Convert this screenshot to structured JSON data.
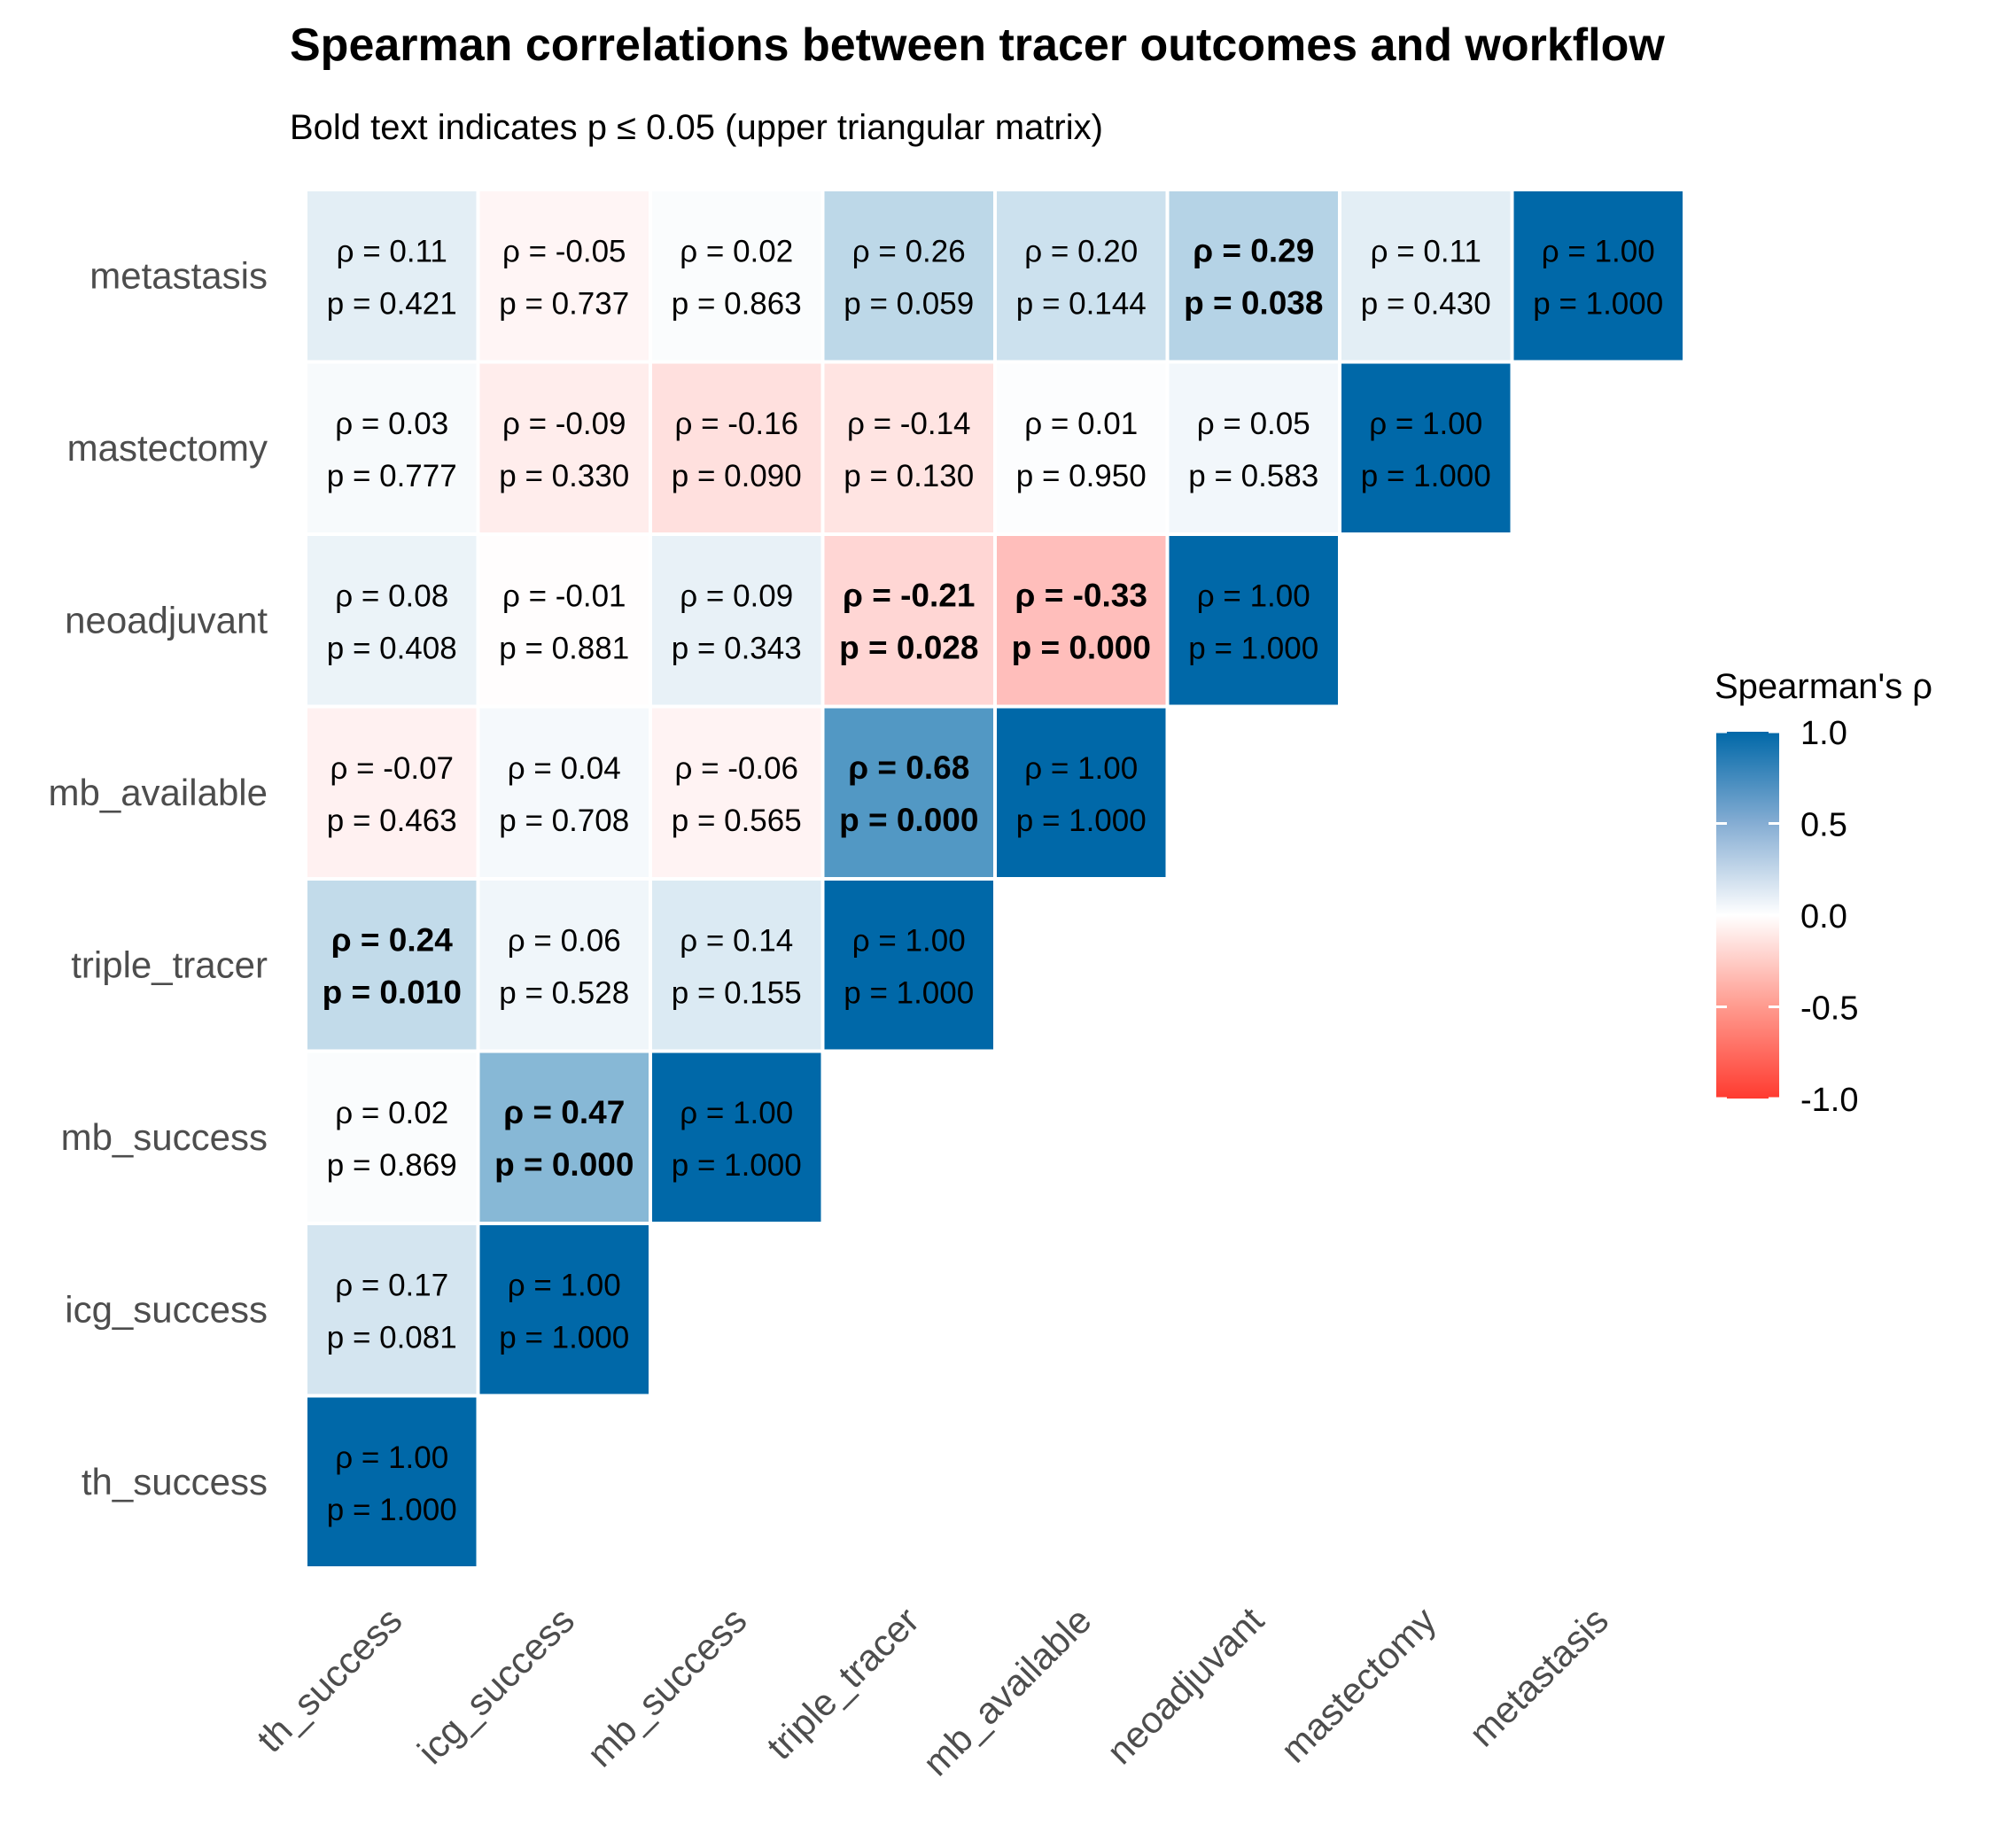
{
  "chart_data": {
    "type": "heatmap",
    "title": "Spearman correlations between tracer outcomes and workflow",
    "subtitle": "Bold text indicates p ≤ 0.05 (upper triangular matrix)",
    "x_categories": [
      "th_success",
      "icg_success",
      "mb_success",
      "triple_tracer",
      "mb_available",
      "neoadjuvant",
      "mastectomy",
      "metastasis"
    ],
    "y_categories": [
      "metastasis",
      "mastectomy",
      "neoadjuvant",
      "mb_available",
      "triple_tracer",
      "mb_success",
      "icg_success",
      "th_success"
    ],
    "cells": [
      {
        "x": "th_success",
        "y": "metastasis",
        "rho": "0.11",
        "p": "0.421",
        "bold": false
      },
      {
        "x": "icg_success",
        "y": "metastasis",
        "rho": "-0.05",
        "p": "0.737",
        "bold": false
      },
      {
        "x": "mb_success",
        "y": "metastasis",
        "rho": "0.02",
        "p": "0.863",
        "bold": false
      },
      {
        "x": "triple_tracer",
        "y": "metastasis",
        "rho": "0.26",
        "p": "0.059",
        "bold": false
      },
      {
        "x": "mb_available",
        "y": "metastasis",
        "rho": "0.20",
        "p": "0.144",
        "bold": false
      },
      {
        "x": "neoadjuvant",
        "y": "metastasis",
        "rho": "0.29",
        "p": "0.038",
        "bold": true
      },
      {
        "x": "mastectomy",
        "y": "metastasis",
        "rho": "0.11",
        "p": "0.430",
        "bold": false
      },
      {
        "x": "metastasis",
        "y": "metastasis",
        "rho": "1.00",
        "p": "1.000",
        "bold": false
      },
      {
        "x": "th_success",
        "y": "mastectomy",
        "rho": "0.03",
        "p": "0.777",
        "bold": false
      },
      {
        "x": "icg_success",
        "y": "mastectomy",
        "rho": "-0.09",
        "p": "0.330",
        "bold": false
      },
      {
        "x": "mb_success",
        "y": "mastectomy",
        "rho": "-0.16",
        "p": "0.090",
        "bold": false
      },
      {
        "x": "triple_tracer",
        "y": "mastectomy",
        "rho": "-0.14",
        "p": "0.130",
        "bold": false
      },
      {
        "x": "mb_available",
        "y": "mastectomy",
        "rho": "0.01",
        "p": "0.950",
        "bold": false
      },
      {
        "x": "neoadjuvant",
        "y": "mastectomy",
        "rho": "0.05",
        "p": "0.583",
        "bold": false
      },
      {
        "x": "mastectomy",
        "y": "mastectomy",
        "rho": "1.00",
        "p": "1.000",
        "bold": false
      },
      {
        "x": "th_success",
        "y": "neoadjuvant",
        "rho": "0.08",
        "p": "0.408",
        "bold": false
      },
      {
        "x": "icg_success",
        "y": "neoadjuvant",
        "rho": "-0.01",
        "p": "0.881",
        "bold": false
      },
      {
        "x": "mb_success",
        "y": "neoadjuvant",
        "rho": "0.09",
        "p": "0.343",
        "bold": false
      },
      {
        "x": "triple_tracer",
        "y": "neoadjuvant",
        "rho": "-0.21",
        "p": "0.028",
        "bold": true
      },
      {
        "x": "mb_available",
        "y": "neoadjuvant",
        "rho": "-0.33",
        "p": "0.000",
        "bold": true
      },
      {
        "x": "neoadjuvant",
        "y": "neoadjuvant",
        "rho": "1.00",
        "p": "1.000",
        "bold": false
      },
      {
        "x": "th_success",
        "y": "mb_available",
        "rho": "-0.07",
        "p": "0.463",
        "bold": false
      },
      {
        "x": "icg_success",
        "y": "mb_available",
        "rho": "0.04",
        "p": "0.708",
        "bold": false
      },
      {
        "x": "mb_success",
        "y": "mb_available",
        "rho": "-0.06",
        "p": "0.565",
        "bold": false
      },
      {
        "x": "triple_tracer",
        "y": "mb_available",
        "rho": "0.68",
        "p": "0.000",
        "bold": true
      },
      {
        "x": "mb_available",
        "y": "mb_available",
        "rho": "1.00",
        "p": "1.000",
        "bold": false
      },
      {
        "x": "th_success",
        "y": "triple_tracer",
        "rho": "0.24",
        "p": "0.010",
        "bold": true
      },
      {
        "x": "icg_success",
        "y": "triple_tracer",
        "rho": "0.06",
        "p": "0.528",
        "bold": false
      },
      {
        "x": "mb_success",
        "y": "triple_tracer",
        "rho": "0.14",
        "p": "0.155",
        "bold": false
      },
      {
        "x": "triple_tracer",
        "y": "triple_tracer",
        "rho": "1.00",
        "p": "1.000",
        "bold": false
      },
      {
        "x": "th_success",
        "y": "mb_success",
        "rho": "0.02",
        "p": "0.869",
        "bold": false
      },
      {
        "x": "icg_success",
        "y": "mb_success",
        "rho": "0.47",
        "p": "0.000",
        "bold": true
      },
      {
        "x": "mb_success",
        "y": "mb_success",
        "rho": "1.00",
        "p": "1.000",
        "bold": false
      },
      {
        "x": "th_success",
        "y": "icg_success",
        "rho": "0.17",
        "p": "0.081",
        "bold": false
      },
      {
        "x": "icg_success",
        "y": "icg_success",
        "rho": "1.00",
        "p": "1.000",
        "bold": false
      },
      {
        "x": "th_success",
        "y": "th_success",
        "rho": "1.00",
        "p": "1.000",
        "bold": false
      }
    ],
    "legend": {
      "title": "Spearman's ρ",
      "range": [
        -1.0,
        1.0
      ],
      "ticks": [
        "1.0",
        "0.5",
        "0.0",
        "-0.5",
        "-1.0"
      ],
      "tick_values": [
        1.0,
        0.5,
        0.0,
        -0.5,
        -1.0
      ],
      "colors": {
        "low": "#FF3B30",
        "mid": "#FFFFFF",
        "high": "#0068A8"
      }
    },
    "labels": {
      "rho_prefix": "ρ = ",
      "p_prefix": "p = "
    }
  }
}
